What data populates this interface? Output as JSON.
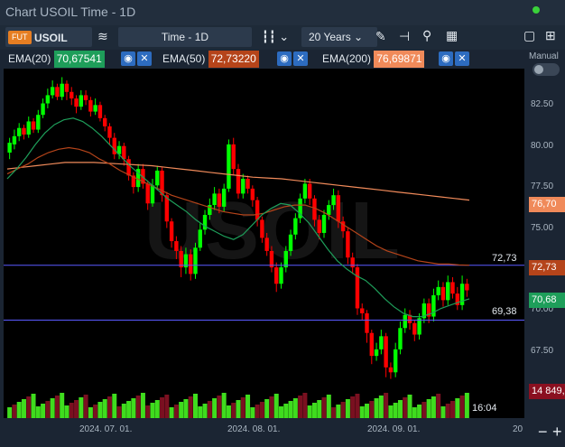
{
  "window": {
    "title": "Chart USOIL Time - 1D"
  },
  "toolbar": {
    "fut_badge": "FUT",
    "symbol": "USOIL",
    "interval": "Time - 1D",
    "range": "20 Years"
  },
  "indicators": [
    {
      "label": "EMA(20)",
      "value": "70,67541",
      "color": "#1e9e5a"
    },
    {
      "label": "EMA(50)",
      "value": "72,73220",
      "color": "#b5441a"
    },
    {
      "label": "EMA(200)",
      "value": "76,69871",
      "color": "#f08a5a"
    }
  ],
  "right_panel": {
    "mode_label": "Manual"
  },
  "watermark": "USOIL",
  "price_tags": {
    "ema200": "76,70",
    "ema50": "72,73",
    "ema20": "70,68",
    "volume": "14 849,",
    "time": "16:04"
  },
  "hlines": [
    {
      "label": "72,73",
      "value": 72.73
    },
    {
      "label": "69,38",
      "value": 69.38
    }
  ],
  "colors": {
    "up": "#00ff00",
    "down": "#ff0000",
    "hline": "#5a5aff"
  },
  "chart_data": {
    "type": "candlestick",
    "ylim": [
      65.5,
      84.5
    ],
    "y_ticks": [
      "82.50",
      "80.00",
      "77.50",
      "75.00",
      "72.50",
      "70.00",
      "67.50"
    ],
    "y_tick_values": [
      82.5,
      80.0,
      77.5,
      75.0,
      72.5,
      70.0,
      67.5
    ],
    "x_ticks": [
      "2024. 07. 01.",
      "2024. 08. 01.",
      "2024. 09. 01.",
      "20"
    ],
    "candles": [
      [
        79.6,
        80.2,
        79.2,
        80.5
      ],
      [
        80.1,
        80.6,
        79.8,
        81.0
      ],
      [
        80.6,
        81.1,
        80.3,
        81.4
      ],
      [
        81.1,
        80.7,
        80.4,
        81.3
      ],
      [
        80.7,
        81.5,
        80.5,
        81.8
      ],
      [
        81.5,
        81.0,
        80.8,
        81.7
      ],
      [
        81.0,
        81.9,
        80.8,
        82.2
      ],
      [
        81.9,
        82.6,
        81.7,
        82.9
      ],
      [
        82.6,
        83.1,
        82.3,
        83.5
      ],
      [
        83.1,
        83.6,
        82.9,
        84.0
      ],
      [
        83.6,
        83.0,
        82.8,
        83.8
      ],
      [
        83.0,
        83.8,
        82.8,
        84.2
      ],
      [
        83.8,
        83.3,
        82.8,
        84.0
      ],
      [
        83.3,
        82.9,
        82.5,
        83.6
      ],
      [
        82.9,
        82.4,
        82.0,
        83.1
      ],
      [
        82.4,
        83.1,
        82.2,
        83.4
      ],
      [
        83.1,
        82.8,
        82.5,
        83.4
      ],
      [
        82.8,
        82.1,
        81.8,
        83.0
      ],
      [
        82.1,
        82.5,
        81.9,
        82.9
      ],
      [
        82.5,
        81.7,
        81.5,
        82.7
      ],
      [
        81.7,
        81.2,
        80.9,
        81.9
      ],
      [
        81.2,
        80.5,
        80.1,
        81.4
      ],
      [
        80.5,
        79.5,
        79.2,
        80.8
      ],
      [
        79.5,
        80.0,
        79.2,
        80.3
      ],
      [
        80.0,
        79.2,
        78.8,
        80.2
      ],
      [
        79.2,
        78.2,
        77.9,
        79.4
      ],
      [
        78.2,
        77.5,
        77.1,
        78.4
      ],
      [
        77.5,
        78.6,
        77.2,
        78.9
      ],
      [
        78.6,
        77.7,
        77.4,
        78.9
      ],
      [
        77.7,
        76.5,
        76.1,
        77.9
      ],
      [
        76.5,
        77.6,
        76.3,
        78.0
      ],
      [
        77.6,
        78.5,
        77.3,
        78.8
      ],
      [
        78.5,
        77.0,
        76.6,
        78.7
      ],
      [
        77.0,
        75.4,
        75.0,
        77.2
      ],
      [
        75.4,
        74.2,
        73.8,
        75.6
      ],
      [
        74.2,
        73.6,
        73.1,
        74.5
      ],
      [
        73.6,
        72.6,
        72.0,
        73.9
      ],
      [
        72.6,
        73.4,
        72.2,
        73.8
      ],
      [
        73.4,
        72.2,
        71.8,
        73.7
      ],
      [
        72.2,
        73.8,
        71.9,
        74.1
      ],
      [
        73.8,
        74.9,
        73.6,
        75.3
      ],
      [
        74.9,
        75.8,
        74.6,
        76.1
      ],
      [
        75.8,
        76.4,
        75.5,
        76.8
      ],
      [
        76.4,
        77.1,
        76.1,
        77.5
      ],
      [
        77.1,
        76.3,
        75.9,
        77.4
      ],
      [
        76.3,
        77.4,
        76.0,
        77.7
      ],
      [
        77.4,
        80.1,
        77.2,
        80.4
      ],
      [
        80.1,
        78.6,
        78.2,
        80.5
      ],
      [
        78.6,
        77.1,
        76.8,
        78.9
      ],
      [
        77.1,
        78.0,
        76.8,
        78.3
      ],
      [
        78.0,
        77.4,
        77.1,
        78.2
      ],
      [
        77.4,
        76.7,
        76.3,
        77.6
      ],
      [
        76.7,
        75.5,
        75.1,
        76.9
      ],
      [
        75.5,
        74.4,
        74.1,
        75.7
      ],
      [
        74.4,
        73.6,
        73.3,
        74.7
      ],
      [
        73.6,
        72.6,
        72.3,
        73.9
      ],
      [
        72.6,
        71.6,
        71.1,
        72.9
      ],
      [
        71.6,
        72.6,
        71.3,
        72.9
      ],
      [
        72.6,
        73.6,
        72.3,
        73.9
      ],
      [
        73.6,
        74.6,
        73.3,
        74.9
      ],
      [
        74.6,
        75.6,
        74.3,
        75.9
      ],
      [
        75.6,
        76.8,
        75.3,
        77.1
      ],
      [
        76.8,
        77.7,
        76.5,
        78.0
      ],
      [
        77.7,
        76.8,
        76.4,
        78.0
      ],
      [
        76.8,
        75.5,
        75.1,
        77.0
      ],
      [
        75.5,
        74.7,
        74.3,
        75.8
      ],
      [
        74.7,
        75.8,
        74.4,
        76.1
      ],
      [
        75.8,
        76.4,
        75.5,
        76.7
      ],
      [
        76.4,
        77.0,
        76.1,
        77.4
      ],
      [
        77.0,
        75.4,
        75.0,
        77.3
      ],
      [
        75.4,
        74.8,
        74.4,
        75.7
      ],
      [
        74.8,
        73.2,
        72.8,
        75.0
      ],
      [
        73.2,
        72.6,
        72.2,
        73.5
      ],
      [
        72.6,
        70.1,
        69.7,
        72.8
      ],
      [
        70.1,
        69.8,
        69.4,
        70.4
      ],
      [
        69.8,
        68.6,
        68.0,
        70.0
      ],
      [
        68.6,
        67.2,
        66.7,
        68.8
      ],
      [
        67.2,
        67.6,
        66.9,
        68.0
      ],
      [
        67.6,
        68.4,
        67.3,
        68.8
      ],
      [
        68.4,
        66.5,
        65.9,
        68.6
      ],
      [
        66.5,
        66.2,
        65.8,
        66.8
      ],
      [
        66.2,
        67.6,
        65.9,
        68.0
      ],
      [
        67.6,
        68.9,
        67.3,
        69.3
      ],
      [
        68.9,
        69.7,
        68.6,
        70.1
      ],
      [
        69.7,
        69.2,
        68.8,
        70.0
      ],
      [
        69.2,
        68.5,
        68.1,
        69.4
      ],
      [
        68.5,
        69.5,
        68.2,
        69.8
      ],
      [
        69.5,
        70.4,
        69.2,
        70.7
      ],
      [
        70.4,
        69.6,
        69.2,
        70.7
      ],
      [
        69.6,
        70.9,
        69.3,
        71.3
      ],
      [
        70.9,
        71.4,
        70.6,
        71.8
      ],
      [
        71.4,
        70.6,
        70.2,
        71.7
      ],
      [
        70.6,
        71.7,
        70.3,
        72.1
      ],
      [
        71.7,
        71.0,
        70.7,
        72.0
      ],
      [
        71.0,
        70.3,
        70.0,
        71.4
      ],
      [
        70.3,
        71.6,
        70.0,
        72.1
      ],
      [
        71.6,
        71.2,
        70.8,
        71.9
      ]
    ],
    "volume_up": [
      1,
      0,
      1,
      1,
      0,
      1,
      1,
      1,
      0,
      1,
      0,
      1,
      1,
      0,
      0,
      1,
      0,
      1,
      0,
      1,
      1,
      0,
      1,
      0,
      1,
      1,
      1,
      0,
      1,
      0,
      1,
      1,
      0,
      0,
      1,
      0,
      1,
      1,
      0,
      1,
      1,
      1,
      0,
      1,
      0,
      1,
      1,
      0,
      1,
      0,
      1,
      1,
      0,
      0,
      1,
      0,
      1,
      1,
      1,
      1,
      1,
      0,
      0,
      1,
      1,
      1,
      0,
      1,
      0,
      1,
      0,
      1,
      0,
      0,
      1,
      1,
      0,
      1,
      1,
      0,
      1,
      1,
      1,
      0,
      1,
      1,
      1,
      0,
      1,
      1,
      0,
      1,
      0,
      0,
      1,
      0,
      1
    ],
    "ema20": [
      78.0,
      78.6,
      79.3,
      80.1,
      80.8,
      81.3,
      81.6,
      81.7,
      81.5,
      81.1,
      80.6,
      80.0,
      79.4,
      78.8,
      78.3,
      77.8,
      77.3,
      76.8,
      76.4,
      76.0,
      75.5,
      75.1,
      74.8,
      74.5,
      74.3,
      74.6,
      75.2,
      75.8,
      76.2,
      76.5,
      76.4,
      75.9,
      75.3,
      74.5,
      73.7,
      73.0,
      72.5,
      72.1,
      71.8,
      71.3,
      70.7,
      70.2,
      69.8,
      69.6,
      69.6,
      69.8,
      70.1,
      70.3,
      70.5,
      70.68
    ],
    "ema50": [
      78.3,
      78.6,
      78.9,
      79.3,
      79.6,
      79.8,
      79.9,
      79.8,
      79.6,
      79.2,
      78.9,
      78.5,
      78.2,
      77.9,
      77.6,
      77.3,
      77.0,
      76.8,
      76.6,
      76.4,
      76.2,
      76.0,
      75.9,
      75.8,
      75.8,
      75.9,
      76.1,
      76.3,
      76.4,
      76.4,
      76.2,
      75.9,
      75.5,
      75.1,
      74.7,
      74.3,
      73.9,
      73.6,
      73.4,
      73.2,
      73.0,
      72.9,
      72.8,
      72.8,
      72.75,
      72.73
    ],
    "ema200": [
      78.6,
      78.7,
      78.8,
      78.9,
      79.0,
      79.0,
      79.0,
      78.95,
      78.9,
      78.85,
      78.8,
      78.7,
      78.6,
      78.5,
      78.4,
      78.3,
      78.2,
      78.1,
      78.05,
      78.0,
      77.9,
      77.8,
      77.7,
      77.6,
      77.5,
      77.4,
      77.3,
      77.2,
      77.1,
      77.0,
      76.9,
      76.8,
      76.7
    ]
  }
}
